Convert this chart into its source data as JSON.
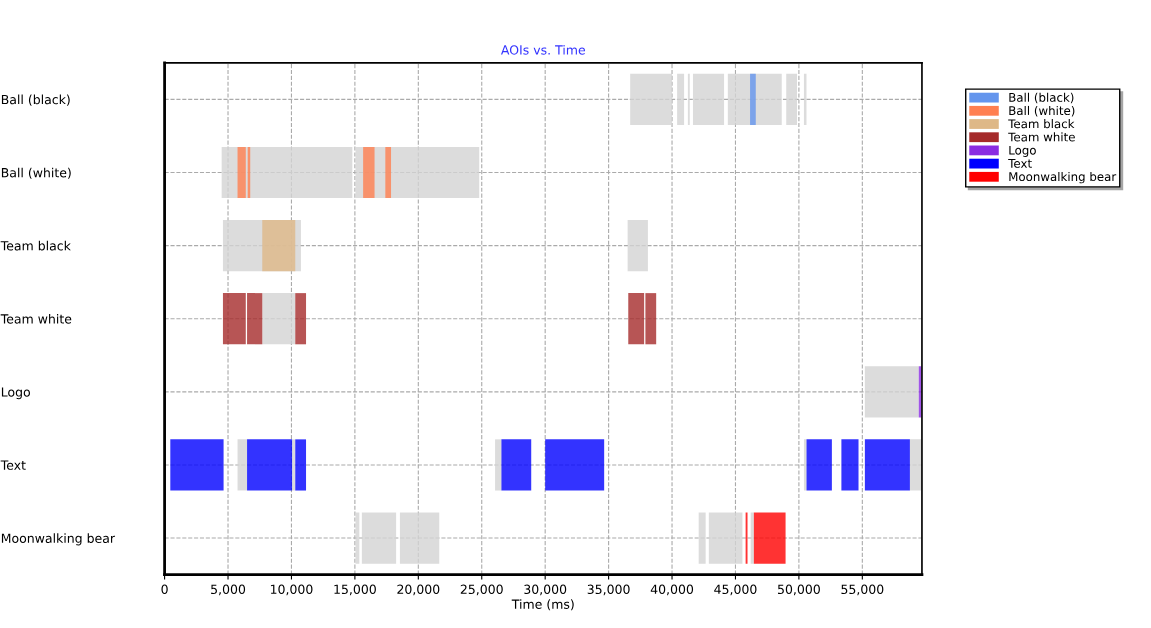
{
  "chart_data": {
    "type": "bar",
    "orientation": "horizontal",
    "title": "AOIs vs. Time",
    "xlabel": "Time (ms)",
    "categories": [
      "Ball (black)",
      "Ball (white)",
      "Team black",
      "Team white",
      "Logo",
      "Text",
      "Moonwalking bear"
    ],
    "xlim": [
      0,
      59700
    ],
    "xticks": [
      0,
      {
        "value": 5000,
        "label": "5,000"
      },
      {
        "value": 10000,
        "label": "10,000"
      },
      {
        "value": 15000,
        "label": "15,000"
      },
      {
        "value": 20000,
        "label": "20,000"
      },
      {
        "value": 25000,
        "label": "25,000"
      },
      {
        "value": 30000,
        "label": "30,000"
      },
      {
        "value": 35000,
        "label": "35,000"
      },
      {
        "value": 40000,
        "label": "40,000"
      },
      {
        "value": 45000,
        "label": "45,000"
      },
      {
        "value": 50000,
        "label": "50,000"
      },
      {
        "value": 55000,
        "label": "55,000"
      }
    ],
    "grid": true,
    "legend": "top right",
    "series": [
      {
        "color": "#d3d3d3",
        "base": [
          36700,
          4500,
          4600,
          7700,
          55200,
          5750,
          15050
        ],
        "values": [
          3300,
          10300,
          6150,
          2600,
          4250,
          750,
          300
        ]
      },
      {
        "color": "#d3d3d3",
        "base": [
          40400,
          15050,
          36500,
          null,
          null,
          10050,
          15550
        ],
        "values": [
          550,
          9750,
          1600,
          null,
          null,
          250,
          2700
        ]
      },
      {
        "color": "#d3d3d3",
        "base": [
          41250,
          null,
          null,
          null,
          null,
          26050,
          18550
        ],
        "values": [
          150,
          null,
          null,
          null,
          null,
          500,
          3100
        ]
      },
      {
        "color": "#d3d3d3",
        "base": [
          41650,
          null,
          null,
          null,
          null,
          50400,
          42100
        ],
        "values": [
          2450,
          null,
          null,
          null,
          null,
          200,
          550
        ]
      },
      {
        "color": "#d3d3d3",
        "base": [
          44400,
          null,
          null,
          null,
          null,
          58750,
          42900
        ],
        "values": [
          4250,
          null,
          null,
          null,
          null,
          900,
          2650
        ]
      },
      {
        "color": "#d3d3d3",
        "base": [
          49000,
          null,
          null,
          null,
          null,
          null,
          46200
        ],
        "values": [
          850,
          null,
          null,
          null,
          null,
          null,
          250
        ]
      },
      {
        "color": "#d3d3d3",
        "base": [
          50400,
          null,
          null,
          null,
          null,
          null,
          null
        ],
        "values": [
          200,
          null,
          null,
          null,
          null,
          null,
          null
        ]
      },
      {
        "name": "Ball (black)",
        "color": "#6495ed",
        "base": [
          46150,
          null,
          null,
          null,
          null,
          null,
          null
        ],
        "values": [
          450,
          null,
          null,
          null,
          null,
          null,
          null
        ]
      },
      {
        "name": "Ball (white)",
        "color": "#ff7f50",
        "base": [
          null,
          5750,
          null,
          null,
          null,
          null,
          null
        ],
        "values": [
          null,
          650,
          null,
          null,
          null,
          null,
          null
        ]
      },
      {
        "color": "#ff7f50",
        "base": [
          null,
          6550,
          null,
          null,
          null,
          null,
          null
        ],
        "values": [
          null,
          200,
          null,
          null,
          null,
          null,
          null
        ]
      },
      {
        "color": "#ff7f50",
        "base": [
          null,
          15650,
          null,
          null,
          null,
          null,
          null
        ],
        "values": [
          null,
          900,
          null,
          null,
          null,
          null,
          null
        ]
      },
      {
        "color": "#ff7f50",
        "base": [
          null,
          17400,
          null,
          null,
          null,
          null,
          null
        ],
        "values": [
          null,
          450,
          null,
          null,
          null,
          null,
          null
        ]
      },
      {
        "name": "Team black",
        "color": "#deb887",
        "base": [
          null,
          null,
          7700,
          null,
          null,
          null,
          null
        ],
        "values": [
          null,
          null,
          2600,
          null,
          null,
          null,
          null
        ]
      },
      {
        "name": "Team white",
        "color": "#a52a2a",
        "base": [
          null,
          null,
          null,
          4600,
          null,
          null,
          null
        ],
        "values": [
          null,
          null,
          null,
          1800,
          null,
          null,
          null
        ]
      },
      {
        "color": "#a52a2a",
        "base": [
          null,
          null,
          null,
          6500,
          null,
          null,
          null
        ],
        "values": [
          null,
          null,
          null,
          1200,
          null,
          null,
          null
        ]
      },
      {
        "color": "#a52a2a",
        "base": [
          null,
          null,
          null,
          10300,
          null,
          null,
          null
        ],
        "values": [
          null,
          null,
          null,
          850,
          null,
          null,
          null
        ]
      },
      {
        "color": "#a52a2a",
        "base": [
          null,
          null,
          null,
          36550,
          null,
          null,
          null
        ],
        "values": [
          null,
          null,
          null,
          1250,
          null,
          null,
          null
        ]
      },
      {
        "color": "#a52a2a",
        "base": [
          null,
          null,
          null,
          37900,
          null,
          null,
          null
        ],
        "values": [
          null,
          null,
          null,
          850,
          null,
          null,
          null
        ]
      },
      {
        "name": "Logo",
        "color": "#8a2be2",
        "base": [
          null,
          null,
          null,
          null,
          59450,
          null,
          null
        ],
        "values": [
          null,
          null,
          null,
          null,
          200,
          null,
          null
        ]
      },
      {
        "name": "Text",
        "color": "#0000ff",
        "base": [
          null,
          null,
          null,
          null,
          null,
          450,
          null
        ],
        "values": [
          null,
          null,
          null,
          null,
          null,
          4200,
          null
        ]
      },
      {
        "color": "#0000ff",
        "base": [
          null,
          null,
          null,
          null,
          null,
          6500,
          null
        ],
        "values": [
          null,
          null,
          null,
          null,
          null,
          3550,
          null
        ]
      },
      {
        "color": "#0000ff",
        "base": [
          null,
          null,
          null,
          null,
          null,
          10300,
          null
        ],
        "values": [
          null,
          null,
          null,
          null,
          null,
          850,
          null
        ]
      },
      {
        "color": "#0000ff",
        "base": [
          null,
          null,
          null,
          null,
          null,
          26550,
          null
        ],
        "values": [
          null,
          null,
          null,
          null,
          null,
          2350,
          null
        ]
      },
      {
        "color": "#0000ff",
        "base": [
          null,
          null,
          null,
          null,
          null,
          30000,
          null
        ],
        "values": [
          null,
          null,
          null,
          null,
          null,
          4650,
          null
        ]
      },
      {
        "color": "#0000ff",
        "base": [
          null,
          null,
          null,
          null,
          null,
          50600,
          null
        ],
        "values": [
          null,
          null,
          null,
          null,
          null,
          2000,
          null
        ]
      },
      {
        "color": "#0000ff",
        "base": [
          null,
          null,
          null,
          null,
          null,
          53350,
          null
        ],
        "values": [
          null,
          null,
          null,
          null,
          null,
          1350,
          null
        ]
      },
      {
        "color": "#0000ff",
        "base": [
          null,
          null,
          null,
          null,
          null,
          55200,
          null
        ],
        "values": [
          null,
          null,
          null,
          null,
          null,
          3550,
          null
        ]
      },
      {
        "name": "Moonwalking bear",
        "color": "#ff0000",
        "base": [
          null,
          null,
          null,
          null,
          null,
          null,
          45800
        ],
        "values": [
          null,
          null,
          null,
          null,
          null,
          null,
          150
        ]
      },
      {
        "color": "#ff0000",
        "base": [
          null,
          null,
          null,
          null,
          null,
          null,
          46450
        ],
        "values": [
          null,
          null,
          null,
          null,
          null,
          null,
          2500
        ]
      }
    ]
  }
}
